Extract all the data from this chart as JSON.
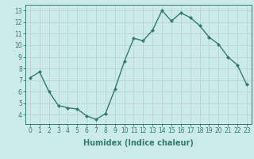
{
  "x": [
    0,
    1,
    2,
    3,
    4,
    5,
    6,
    7,
    8,
    9,
    10,
    11,
    12,
    13,
    14,
    15,
    16,
    17,
    18,
    19,
    20,
    21,
    22,
    23
  ],
  "y": [
    7.2,
    7.7,
    6.0,
    4.8,
    4.6,
    4.5,
    3.9,
    3.6,
    4.1,
    6.2,
    8.6,
    10.6,
    10.4,
    11.3,
    13.0,
    12.1,
    12.8,
    12.4,
    11.7,
    10.7,
    10.1,
    9.0,
    8.3,
    6.6
  ],
  "line_color": "#2e7d6e",
  "marker": "D",
  "marker_size": 2.0,
  "line_width": 1.0,
  "xlabel": "Humidex (Indice chaleur)",
  "xlabel_fontsize": 7,
  "xlabel_weight": "bold",
  "bg_color": "#cdeaea",
  "grid_color": "#b8d4d4",
  "tick_color": "#2e7d6e",
  "xlim": [
    -0.5,
    23.5
  ],
  "ylim": [
    3.2,
    13.5
  ],
  "yticks": [
    4,
    5,
    6,
    7,
    8,
    9,
    10,
    11,
    12,
    13
  ],
  "xticks": [
    0,
    1,
    2,
    3,
    4,
    5,
    6,
    7,
    8,
    9,
    10,
    11,
    12,
    13,
    14,
    15,
    16,
    17,
    18,
    19,
    20,
    21,
    22,
    23
  ],
  "tick_fontsize": 5.5
}
